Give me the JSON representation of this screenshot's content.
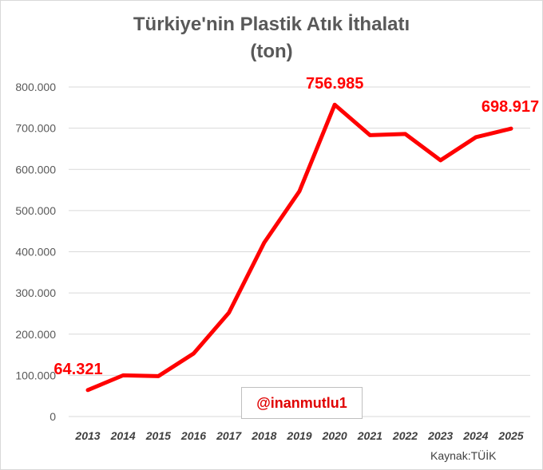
{
  "chart_data": {
    "type": "line",
    "title": "Türkiye'nin Plastik Atık İthalatı",
    "subtitle": "(ton)",
    "categories": [
      "2013",
      "2014",
      "2015",
      "2016",
      "2017",
      "2018",
      "2019",
      "2020",
      "2021",
      "2022",
      "2023",
      "2024",
      "2025"
    ],
    "series": [
      {
        "values": [
          64321,
          100000,
          98000,
          153000,
          252000,
          422000,
          547000,
          756985,
          683000,
          686000,
          622000,
          678000,
          698917
        ]
      }
    ],
    "ylim": [
      0,
      800000
    ],
    "yticks": [
      "0",
      "100.000",
      "200.000",
      "300.000",
      "400.000",
      "500.000",
      "600.000",
      "700.000",
      "800.000"
    ],
    "data_labels": [
      {
        "index": 0,
        "text": "64.321"
      },
      {
        "index": 7,
        "text": "756.985"
      },
      {
        "index": 12,
        "text": "698.917"
      }
    ],
    "grid": true,
    "line_color": "#ff0000"
  },
  "watermark": "@inanmutlu1",
  "source": "Kaynak:TÜİK"
}
